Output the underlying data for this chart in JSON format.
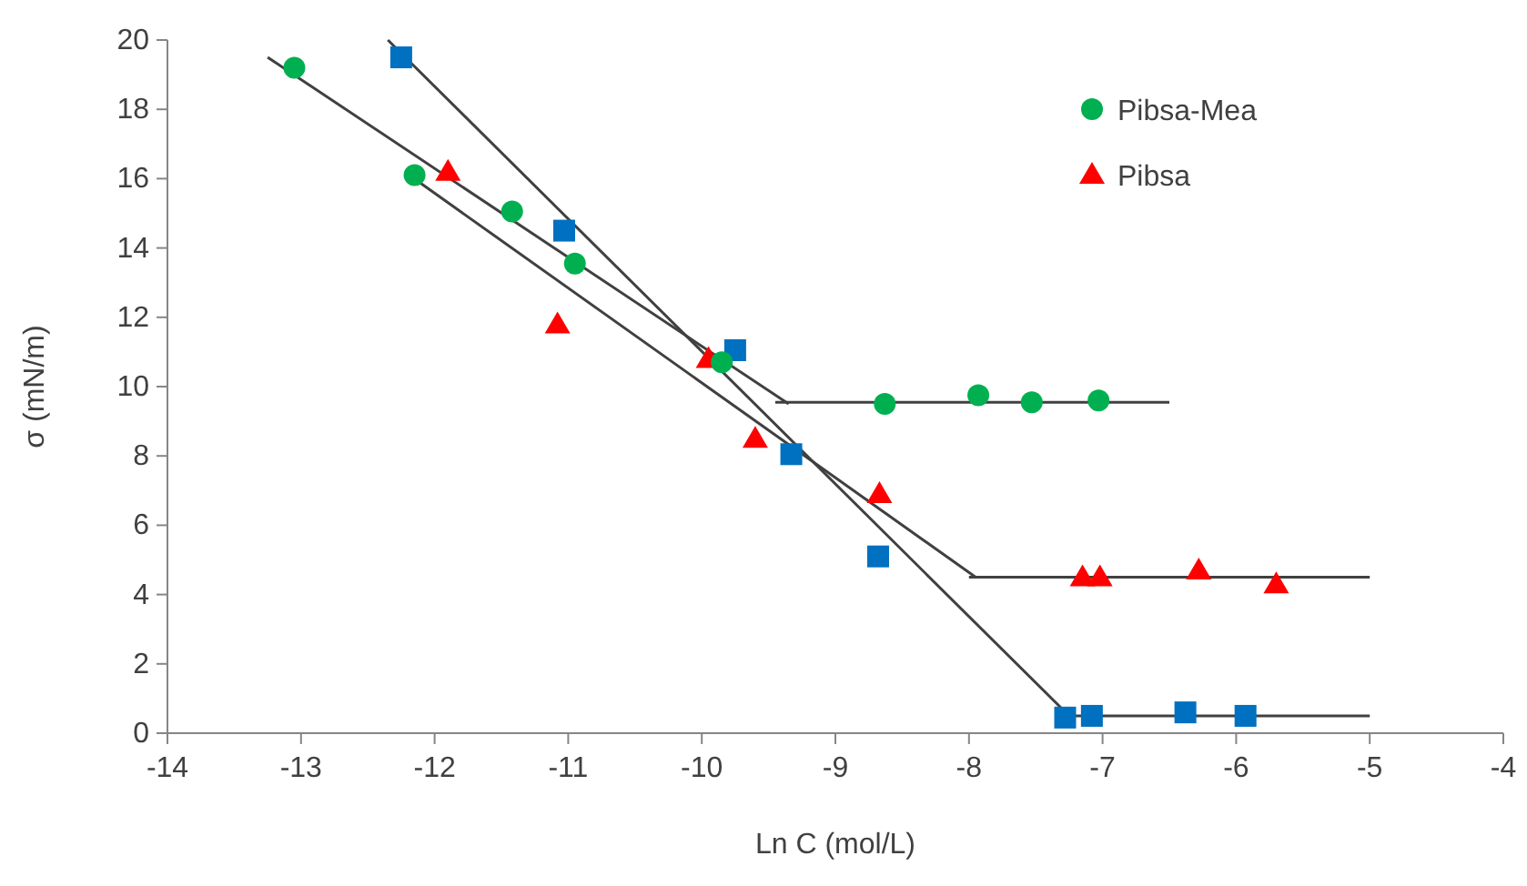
{
  "chart_data": {
    "type": "scatter",
    "xlabel": "Ln C (mol/L)",
    "ylabel": "σ (mN/m)",
    "xlim": [
      -14,
      -4
    ],
    "xticks": [
      -14,
      -13,
      -12,
      -11,
      -10,
      -9,
      -8,
      -7,
      -6,
      -5,
      -4
    ],
    "ylim": [
      0,
      20
    ],
    "yticks": [
      0,
      2,
      4,
      6,
      8,
      10,
      12,
      14,
      16,
      18,
      20
    ],
    "grid": false,
    "legend": "top right",
    "series": [
      {
        "name": "Pibsa-Mea",
        "color": "#00b050",
        "marker": "circle",
        "x": [
          -13.05,
          -12.15,
          -11.42,
          -10.95,
          -9.85,
          -8.63,
          -7.93,
          -7.53,
          -7.03
        ],
        "values": [
          19.2,
          16.1,
          15.05,
          13.55,
          10.7,
          9.5,
          9.75,
          9.55,
          9.6
        ]
      },
      {
        "color": "#0070c0",
        "marker": "square",
        "x": [
          -12.25,
          -11.03,
          -9.75,
          -9.33,
          -8.68,
          -7.28,
          -7.08,
          -6.38,
          -5.93
        ],
        "values": [
          19.5,
          14.5,
          11.05,
          8.05,
          5.1,
          0.45,
          0.5,
          0.6,
          0.5
        ]
      },
      {
        "name": "Pibsa",
        "color": "#ff0000",
        "marker": "triangle",
        "x": [
          -11.9,
          -11.08,
          -9.95,
          -9.6,
          -8.67,
          -7.15,
          -7.02,
          -6.28,
          -5.7
        ],
        "values": [
          16.2,
          11.8,
          10.8,
          8.5,
          6.9,
          4.5,
          4.5,
          4.7,
          4.3
        ]
      },
      {
        "type": "line",
        "color": "#404040",
        "marker": "none",
        "x": [
          -13.25,
          -9.35
        ],
        "values": [
          19.5,
          9.5
        ]
      },
      {
        "type": "line",
        "color": "#404040",
        "marker": "none",
        "x": [
          -9.45,
          -6.5
        ],
        "values": [
          9.55,
          9.55
        ]
      },
      {
        "type": "line",
        "color": "#404040",
        "marker": "none",
        "x": [
          -12.35,
          -7.25
        ],
        "values": [
          20,
          0.5
        ]
      },
      {
        "type": "line",
        "color": "#404040",
        "marker": "none",
        "x": [
          -7.3,
          -5
        ],
        "values": [
          0.5,
          0.5
        ]
      },
      {
        "type": "line",
        "color": "#404040",
        "marker": "none",
        "x": [
          -12.19,
          -7.95
        ],
        "values": [
          16.1,
          4.5
        ]
      },
      {
        "type": "line",
        "color": "#404040",
        "marker": "none",
        "x": [
          -8.0,
          -5
        ],
        "values": [
          4.5,
          4.5
        ]
      }
    ]
  }
}
